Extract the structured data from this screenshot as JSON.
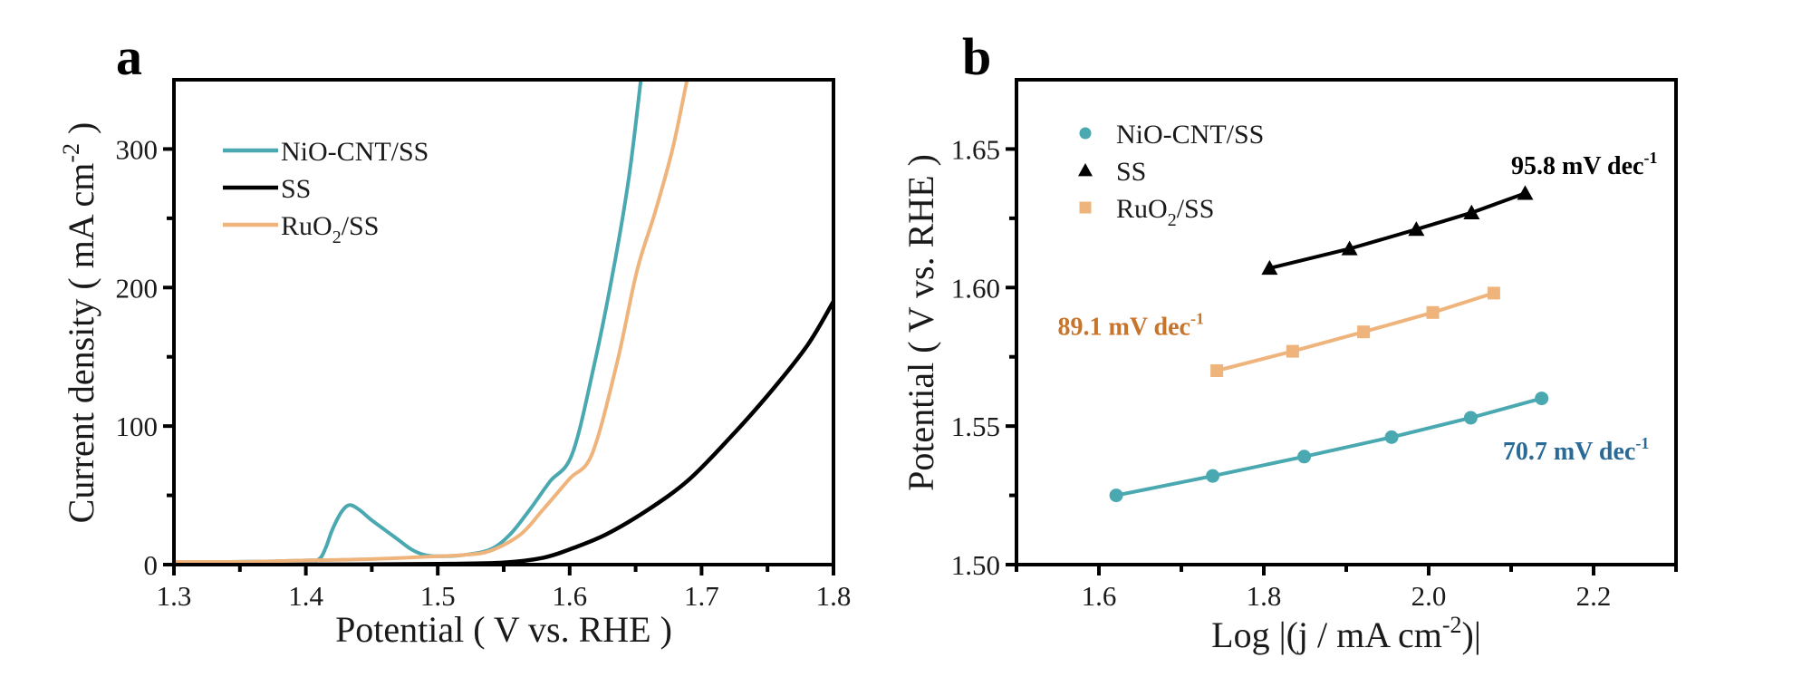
{
  "colors": {
    "nio": "#4aa8b0",
    "ss": "#000000",
    "ruo2": "#eeb47c",
    "annot_nio": "#2a6a96",
    "annot_ruo2": "#c8742a",
    "annot_ss": "#000000"
  },
  "chart_data": [
    {
      "panel": "a",
      "type": "line",
      "title": "",
      "xlabel": "Potential ( V vs. RHE )",
      "ylabel": "Current density ( mA cm⁻² )",
      "ylabel_parts": {
        "pre": "Current density ( mA cm",
        "sup": "-2",
        "post": " )"
      },
      "xlim": [
        1.3,
        1.8
      ],
      "ylim": [
        0,
        350
      ],
      "xticks": [
        1.3,
        1.4,
        1.5,
        1.6,
        1.7,
        1.8
      ],
      "xtick_labels": [
        "1.3",
        "1.4",
        "1.5",
        "1.6",
        "1.7",
        "1.8"
      ],
      "xminor": [
        1.35,
        1.45,
        1.55,
        1.65,
        1.75
      ],
      "yticks": [
        0,
        100,
        200,
        300
      ],
      "ytick_labels": [
        "0",
        "100",
        "200",
        "300"
      ],
      "yminor": [
        50,
        150,
        250
      ],
      "grid": false,
      "legend": {
        "position": "top-left",
        "entries": [
          {
            "label": "NiO-CNT/SS",
            "key": "nio"
          },
          {
            "label": "SS",
            "key": "ss"
          },
          {
            "label": "RuO",
            "sub": "2",
            "post": "/SS",
            "key": "ruo2"
          }
        ]
      },
      "series": [
        {
          "name": "NiO-CNT/SS",
          "key": "nio",
          "x": [
            1.3,
            1.35,
            1.4,
            1.41,
            1.415,
            1.42,
            1.427,
            1.433,
            1.44,
            1.45,
            1.46,
            1.47,
            1.48,
            1.49,
            1.5,
            1.52,
            1.54,
            1.555,
            1.57,
            1.585,
            1.602,
            1.619,
            1.633,
            1.645,
            1.654
          ],
          "y": [
            2,
            2,
            3,
            4,
            12,
            25,
            38,
            43,
            40,
            32,
            25,
            18,
            11,
            7,
            6,
            7,
            11,
            22,
            40,
            60,
            80,
            146,
            212,
            280,
            350
          ]
        },
        {
          "name": "SS",
          "key": "ss",
          "x": [
            1.3,
            1.4,
            1.5,
            1.55,
            1.58,
            1.6,
            1.628,
            1.66,
            1.69,
            1.72,
            1.75,
            1.78,
            1.8
          ],
          "y": [
            0,
            0,
            0.5,
            1.5,
            5,
            11,
            22,
            40,
            61,
            90,
            122,
            158,
            190
          ]
        },
        {
          "name": "RuO2/SS",
          "key": "ruo2",
          "x": [
            1.3,
            1.35,
            1.4,
            1.45,
            1.5,
            1.52,
            1.54,
            1.563,
            1.58,
            1.6,
            1.617,
            1.636,
            1.651,
            1.665,
            1.678,
            1.689
          ],
          "y": [
            2,
            2,
            3,
            4,
            6,
            7,
            10,
            22,
            40,
            62,
            80,
            146,
            212,
            255,
            300,
            350
          ]
        }
      ]
    },
    {
      "panel": "b",
      "type": "scatter",
      "title": "",
      "xlabel_parts": {
        "pre": "Log |(j / mA cm",
        "sup": "-2",
        "post": ")|"
      },
      "ylabel": "Potential ( V vs. RHE )",
      "xlim": [
        1.5,
        2.3
      ],
      "ylim": [
        1.5,
        1.675
      ],
      "xticks": [
        1.6,
        1.8,
        2.0,
        2.2
      ],
      "xtick_labels": [
        "1.6",
        "1.8",
        "2.0",
        "2.2"
      ],
      "xminor": [
        1.5,
        1.7,
        1.9,
        2.1,
        2.3
      ],
      "yticks": [
        1.5,
        1.55,
        1.6,
        1.65
      ],
      "ytick_labels": [
        "1.50",
        "1.55",
        "1.60",
        "1.65"
      ],
      "yminor": [
        1.525,
        1.575,
        1.625
      ],
      "grid": false,
      "legend": {
        "position": "top-left",
        "entries": [
          {
            "label": "NiO-CNT/SS",
            "key": "nio",
            "marker": "circle"
          },
          {
            "label": "SS",
            "key": "ss",
            "marker": "triangle"
          },
          {
            "label": "RuO",
            "sub": "2",
            "post": "/SS",
            "key": "ruo2",
            "marker": "square"
          }
        ]
      },
      "series": [
        {
          "name": "NiO-CNT/SS",
          "key": "nio",
          "marker": "circle",
          "x": [
            1.621,
            1.738,
            1.849,
            1.955,
            2.051,
            2.137
          ],
          "y": [
            1.525,
            1.532,
            1.539,
            1.546,
            1.553,
            1.56
          ],
          "tafel_slope": "70.7 mV dec",
          "tafel_sup": "-1"
        },
        {
          "name": "SS",
          "key": "ss",
          "marker": "triangle",
          "x": [
            1.807,
            1.904,
            1.985,
            2.052,
            2.117
          ],
          "y": [
            1.607,
            1.614,
            1.621,
            1.627,
            1.634
          ],
          "tafel_slope": "95.8 mV dec",
          "tafel_sup": "-1"
        },
        {
          "name": "RuO2/SS",
          "key": "ruo2",
          "marker": "square",
          "x": [
            1.743,
            1.835,
            1.921,
            2.005,
            2.079
          ],
          "y": [
            1.57,
            1.577,
            1.584,
            1.591,
            1.598
          ],
          "tafel_slope": "89.1 mV dec",
          "tafel_sup": "-1"
        }
      ],
      "annotations": [
        {
          "text": "95.8 mV dec",
          "sup": "-1",
          "key": "annot_ss",
          "at": [
            2.1,
            1.641
          ]
        },
        {
          "text": "89.1 mV dec",
          "sup": "-1",
          "key": "annot_ruo2",
          "at": [
            1.55,
            1.583
          ]
        },
        {
          "text": "70.7 mV dec",
          "sup": "-1",
          "key": "annot_nio",
          "at": [
            2.09,
            1.538
          ]
        }
      ]
    }
  ],
  "panel_labels": [
    "a",
    "b"
  ]
}
